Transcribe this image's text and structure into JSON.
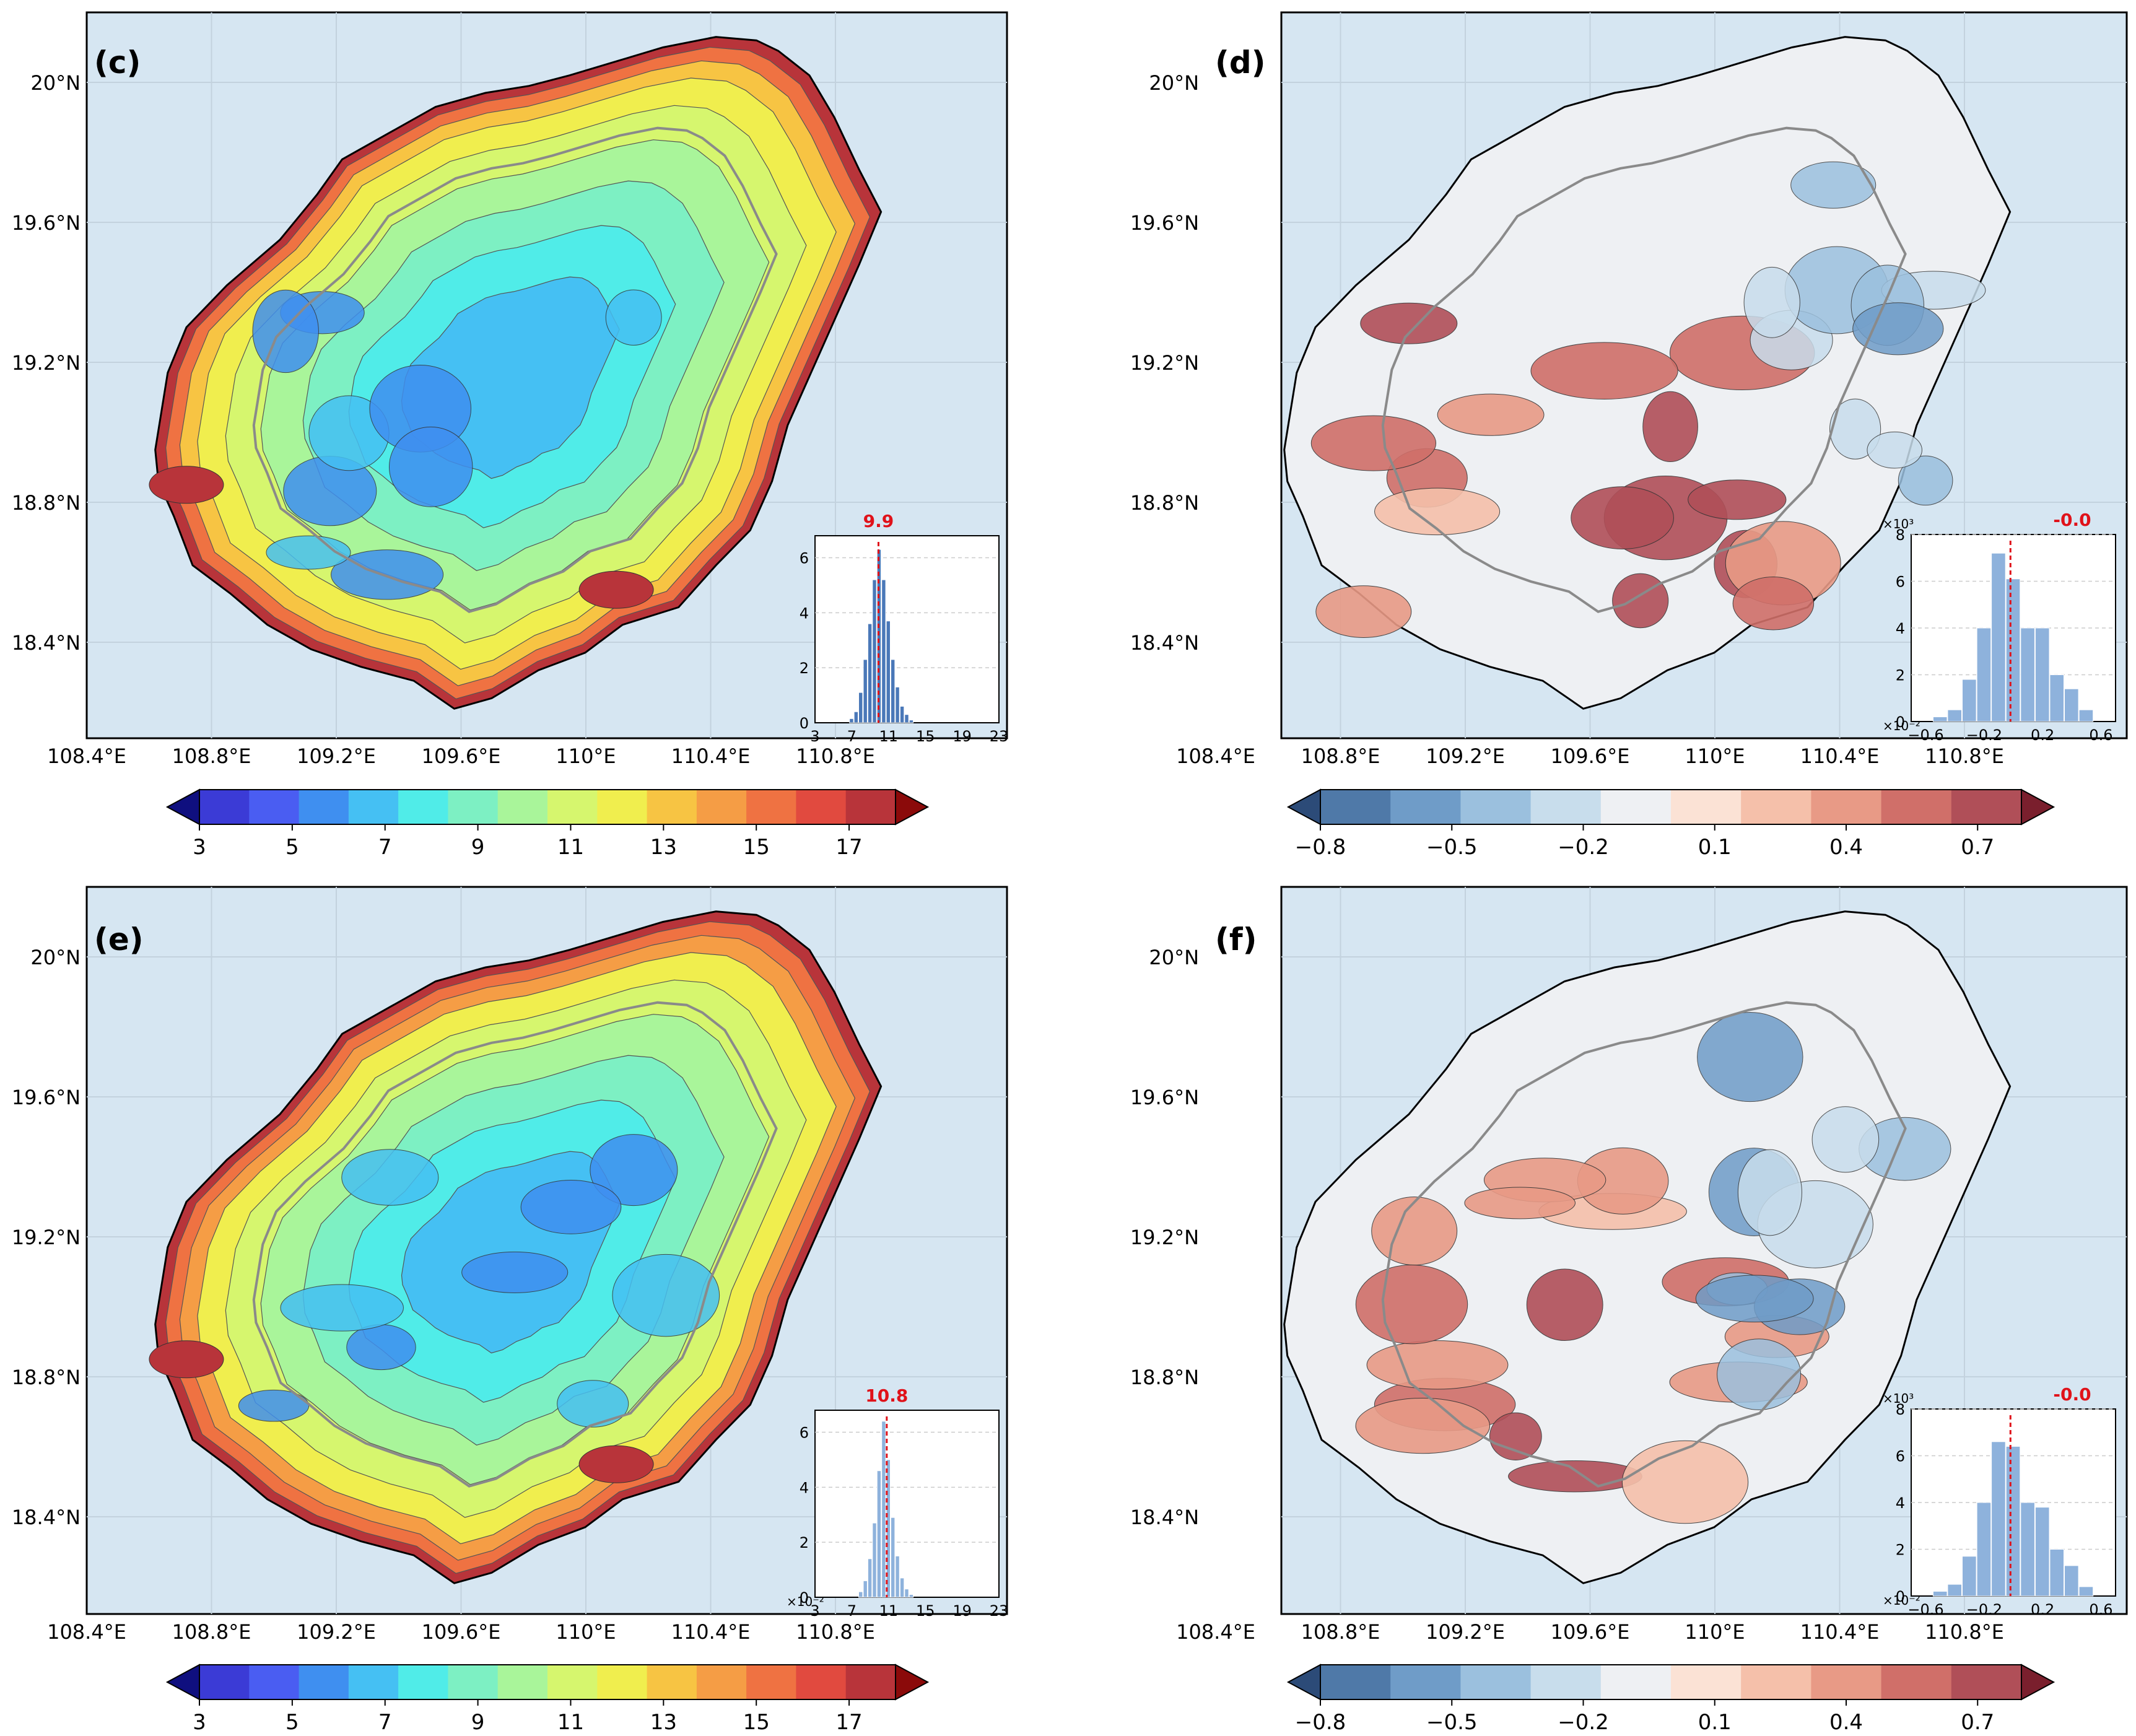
{
  "figure": {
    "axes": {
      "lon_ticks": [
        "108.4°E",
        "108.8°E",
        "109.2°E",
        "109.6°E",
        "110°E",
        "110.4°E",
        "110.8°E"
      ],
      "lat_ticks": [
        "20°N",
        "19.6°N",
        "19.2°N",
        "18.8°N",
        "18.4°N"
      ]
    },
    "panels": [
      {
        "id": "c",
        "label": "(c)",
        "kind": "sequential",
        "colorbar": {
          "ticks": [
            "3",
            "5",
            "7",
            "9",
            "11",
            "13",
            "15",
            "17"
          ],
          "range": [
            3,
            18
          ]
        },
        "hist": {
          "mean_label": "9.9",
          "mean": 9.9,
          "x_ticks": [
            "3",
            "7",
            "11",
            "15",
            "19",
            "23"
          ],
          "x_range": [
            3,
            23
          ],
          "y_ticks": [
            "0",
            "2",
            "4",
            "6"
          ],
          "y_range": [
            0,
            6.8
          ],
          "scale_y": "",
          "scale_x": "",
          "bins": [
            [
              7.0,
              0.15
            ],
            [
              7.5,
              0.4
            ],
            [
              8.0,
              1.1
            ],
            [
              8.5,
              2.3
            ],
            [
              9.0,
              3.6
            ],
            [
              9.5,
              5.2
            ],
            [
              10.0,
              6.3
            ],
            [
              10.5,
              5.2
            ],
            [
              11.0,
              3.7
            ],
            [
              11.5,
              2.3
            ],
            [
              12.0,
              1.3
            ],
            [
              12.5,
              0.6
            ],
            [
              13.0,
              0.3
            ],
            [
              13.5,
              0.1
            ]
          ]
        }
      },
      {
        "id": "d",
        "label": "(d)",
        "kind": "diverging",
        "colorbar": {
          "ticks": [
            "−0.8",
            "−0.5",
            "−0.2",
            "0.1",
            "0.4",
            "0.7"
          ],
          "range": [
            -0.8,
            0.8
          ]
        },
        "hist": {
          "mean_label": "-0.0",
          "mean": -0.02,
          "x_ticks": [
            "−0.6",
            "−0.2",
            "0.2",
            "0.6"
          ],
          "x_range": [
            -0.7,
            0.7
          ],
          "y_ticks": [
            "0",
            "2",
            "4",
            "6",
            "8"
          ],
          "y_range": [
            0,
            8
          ],
          "scale_y": "×10³",
          "scale_x": "×10⁻²",
          "bins": [
            [
              -0.5,
              0.2
            ],
            [
              -0.4,
              0.5
            ],
            [
              -0.3,
              1.8
            ],
            [
              -0.2,
              4.0
            ],
            [
              -0.1,
              7.2
            ],
            [
              0.0,
              6.1
            ],
            [
              0.1,
              4.0
            ],
            [
              0.2,
              4.0
            ],
            [
              0.3,
              2.0
            ],
            [
              0.4,
              1.4
            ],
            [
              0.5,
              0.5
            ]
          ]
        }
      },
      {
        "id": "e",
        "label": "(e)",
        "kind": "sequential",
        "colorbar": {
          "ticks": [
            "3",
            "5",
            "7",
            "9",
            "11",
            "13",
            "15",
            "17"
          ],
          "range": [
            3,
            18
          ]
        },
        "hist": {
          "mean_label": "10.8",
          "mean": 10.8,
          "x_ticks": [
            "3",
            "7",
            "11",
            "15",
            "19",
            "23"
          ],
          "x_range": [
            3,
            23
          ],
          "y_ticks": [
            "0",
            "2",
            "4",
            "6"
          ],
          "y_range": [
            0,
            6.8
          ],
          "scale_y": "",
          "scale_x": "×10⁻²",
          "bins": [
            [
              8.0,
              0.2
            ],
            [
              8.5,
              0.6
            ],
            [
              9.0,
              1.4
            ],
            [
              9.5,
              2.7
            ],
            [
              10.0,
              4.6
            ],
            [
              10.5,
              6.4
            ],
            [
              11.0,
              5.0
            ],
            [
              11.5,
              2.9
            ],
            [
              12.0,
              1.5
            ],
            [
              12.5,
              0.7
            ],
            [
              13.0,
              0.3
            ],
            [
              13.5,
              0.1
            ]
          ]
        }
      },
      {
        "id": "f",
        "label": "(f)",
        "kind": "diverging",
        "colorbar": {
          "ticks": [
            "−0.8",
            "−0.5",
            "−0.2",
            "0.1",
            "0.4",
            "0.7"
          ],
          "range": [
            -0.8,
            0.8
          ]
        },
        "hist": {
          "mean_label": "-0.0",
          "mean": -0.02,
          "x_ticks": [
            "−0.6",
            "−0.2",
            "0.2",
            "0.6"
          ],
          "x_range": [
            -0.7,
            0.7
          ],
          "y_ticks": [
            "0",
            "2",
            "4",
            "6",
            "8"
          ],
          "y_range": [
            0,
            8
          ],
          "scale_y": "×10³",
          "scale_x": "×10⁻²",
          "bins": [
            [
              -0.5,
              0.2
            ],
            [
              -0.4,
              0.5
            ],
            [
              -0.3,
              1.7
            ],
            [
              -0.2,
              4.0
            ],
            [
              -0.1,
              6.6
            ],
            [
              0.0,
              6.4
            ],
            [
              0.1,
              4.0
            ],
            [
              0.2,
              3.8
            ],
            [
              0.3,
              2.0
            ],
            [
              0.4,
              1.3
            ],
            [
              0.5,
              0.4
            ]
          ]
        }
      }
    ],
    "colors": {
      "ocean": "#d6e6f2",
      "sequential": [
        "#0f0f7f",
        "#3b3bd6",
        "#4a5df2",
        "#3f8ff0",
        "#45c0f3",
        "#50ece8",
        "#7df0c3",
        "#a9f59a",
        "#d6f66e",
        "#f0ee4e",
        "#f7c443",
        "#f59d45",
        "#ef7242",
        "#e14a3f",
        "#b8343a",
        "#8b0a0a"
      ],
      "diverging": [
        "#2c4b78",
        "#4f79a8",
        "#6f9cc8",
        "#9bc0de",
        "#c8ddec",
        "#eef0f3",
        "#fbe2d5",
        "#f5c0aa",
        "#e89a86",
        "#d06f69",
        "#b04f58",
        "#7a1f2d"
      ],
      "hist_bar": "#5f8fcf",
      "mean_line": "#e0121a"
    }
  }
}
